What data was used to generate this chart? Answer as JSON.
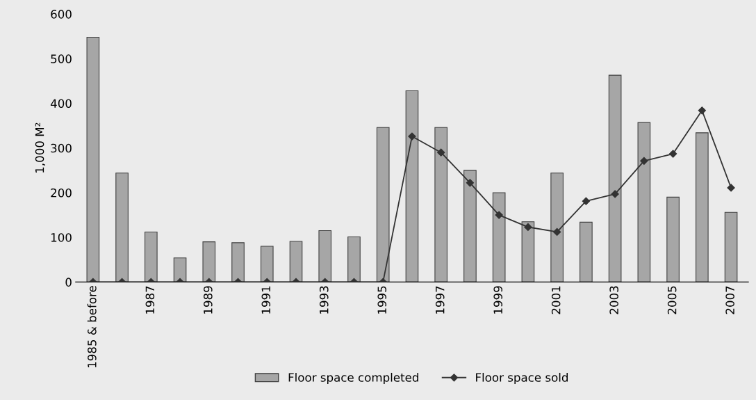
{
  "chart_data": {
    "type": "bar",
    "ylabel": "1,000 M²",
    "categories": [
      "1985 & before",
      null,
      "1987",
      null,
      "1989",
      null,
      "1991",
      null,
      "1993",
      null,
      "1995",
      null,
      "1997",
      null,
      "1999",
      null,
      "2001",
      null,
      "2003",
      null,
      "2005",
      null,
      "2007"
    ],
    "series": [
      {
        "name": "Floor space completed",
        "color": "#a6a6a6",
        "values": [
          548,
          244,
          112,
          54,
          90,
          88,
          80,
          91,
          115,
          101,
          346,
          428,
          346,
          250,
          200,
          135,
          244,
          134,
          463,
          357,
          190,
          334,
          156
        ]
      },
      {
        "name": "Floor space sold",
        "type": "line",
        "color": "#333333",
        "marker": "diamond",
        "values": [
          0,
          0,
          0,
          0,
          0,
          0,
          0,
          0,
          0,
          0,
          0,
          326,
          290,
          222,
          150,
          123,
          112,
          181,
          197,
          271,
          287,
          384,
          211
        ]
      }
    ],
    "ylim": [
      0,
      600
    ],
    "yticks": [
      0,
      100,
      200,
      300,
      400,
      500,
      600
    ],
    "grid": false,
    "legend": "bottom"
  }
}
